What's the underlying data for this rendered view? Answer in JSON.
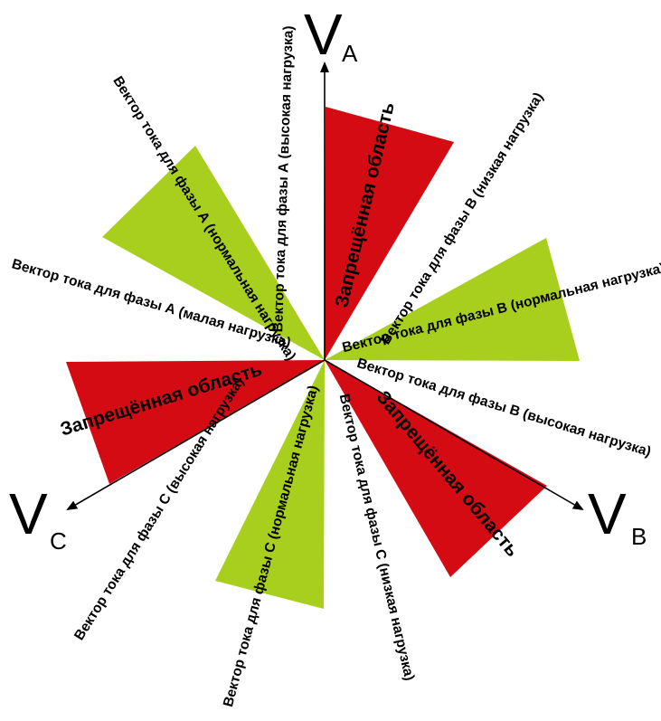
{
  "colors": {
    "forbidden": "#d50b14",
    "normal": "#a8cf1e",
    "axis": "#000000"
  },
  "axes": {
    "a": {
      "letter": "V",
      "sub": "A"
    },
    "b": {
      "letter": "V",
      "sub": "B"
    },
    "c": {
      "letter": "V",
      "sub": "C"
    }
  },
  "zones": {
    "forbidden_label": "Запрещённая область"
  },
  "labels": {
    "a_high": "Вектор тока для фазы А (высокая нагрузка)",
    "a_normal": "Вектор тока для фазы А (нормальная нагрузка)",
    "a_low": "Вектор тока для фазы А (малая нагрузка)",
    "b_low": "Вектор тока для фазы В (низкая нагрузка)",
    "b_normal": "Вектор тока для фазы В (нормальная нагрузка)",
    "b_high": "Вектор тока для фазы В (высокая нагрузка)",
    "c_high": "Вектор тока для фазы С (высокая нагрузка)",
    "c_normal": "Вектор тока для фазы С (нормальная нагрузка)",
    "c_low": "Вектор тока для фазы С (низкая нагрузка)"
  }
}
